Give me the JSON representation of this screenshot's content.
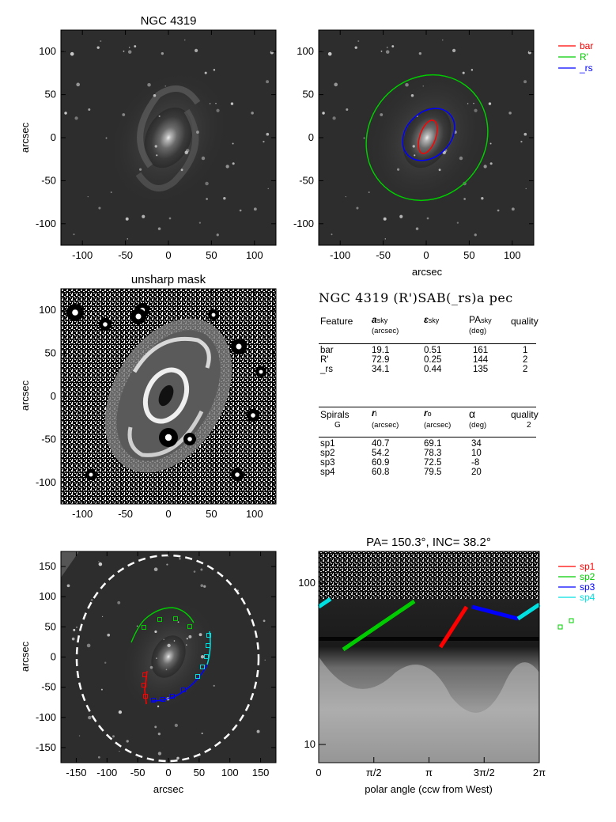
{
  "figure": {
    "galaxy_title": "NGC 4319",
    "unsharp_title": "unsharp mask",
    "deproj_title": "PA= 150.3°, INC=  38.2°",
    "arcsec_label": "arcsec",
    "polar_xlabel": "polar angle (ccw from West)"
  },
  "panel_a": {
    "xticks": [
      "-100",
      "-50",
      "0",
      "50",
      "100"
    ],
    "yticks": [
      "100",
      "50",
      "0",
      "-50",
      "-100"
    ]
  },
  "panel_b": {
    "xticks": [
      "-100",
      "-50",
      "0",
      "50",
      "100"
    ],
    "yticks": [
      "100",
      "50",
      "0",
      "-50",
      "-100"
    ],
    "legend": [
      {
        "label": "bar",
        "color": "#ff0000"
      },
      {
        "label": "R'",
        "color": "#00cc00"
      },
      {
        "label": "_rs",
        "color": "#0000ff"
      }
    ]
  },
  "panel_c": {
    "xticks": [
      "-100",
      "-50",
      "0",
      "50",
      "100"
    ],
    "yticks": [
      "100",
      "50",
      "0",
      "-50",
      "-100"
    ]
  },
  "panel_e": {
    "xticks": [
      "-150",
      "-100",
      "-50",
      "0",
      "50",
      "100",
      "150"
    ],
    "yticks": [
      "150",
      "100",
      "50",
      "0",
      "-50",
      "-100",
      "-150"
    ]
  },
  "panel_f": {
    "xticks": [
      "0",
      "π/2",
      "π",
      "3π/2",
      "2π"
    ],
    "yticks": [
      "100",
      "10"
    ],
    "legend": [
      {
        "label": "sp1",
        "color": "#ff0000"
      },
      {
        "label": "sp2",
        "color": "#00cc00"
      },
      {
        "label": "sp3",
        "color": "#0000ff"
      },
      {
        "label": "sp4",
        "color": "#00e0e0"
      }
    ]
  },
  "table": {
    "title": "NGC 4319  (R')SAB(_rs)a pec",
    "features_header": {
      "col1": "Feature",
      "col2": "a",
      "col2_sub": "sky",
      "col2_unit": "(arcsec)",
      "col3": "ε",
      "col3_sub": "sky",
      "col4": "PA",
      "col4_sub": "sky",
      "col4_unit": "(deg)",
      "col5": "quality"
    },
    "features": [
      {
        "name": "bar",
        "a": "19.1",
        "eps": "0.51",
        "pa": "161",
        "q": "1"
      },
      {
        "name": "R'",
        "a": "72.9",
        "eps": "0.25",
        "pa": "144",
        "q": "2"
      },
      {
        "name": "_rs",
        "a": "34.1",
        "eps": "0.44",
        "pa": "135",
        "q": "2"
      }
    ],
    "spirals_header": {
      "col1": "Spirals",
      "col1_sub": "G",
      "col2": "r",
      "col2_sub": "i",
      "col2_unit": "(arcsec)",
      "col3": "r",
      "col3_sub": "o",
      "col3_unit": "(arcsec)",
      "col4": "α",
      "col4_unit": "(deg)",
      "col5": "quality",
      "col5_val": "2"
    },
    "spirals": [
      {
        "name": "sp1",
        "ri": "40.7",
        "ro": "69.1",
        "alpha": "34"
      },
      {
        "name": "sp2",
        "ri": "54.2",
        "ro": "78.3",
        "alpha": "10"
      },
      {
        "name": "sp3",
        "ri": "60.9",
        "ro": "72.5",
        "alpha": "-8"
      },
      {
        "name": "sp4",
        "ri": "60.8",
        "ro": "79.5",
        "alpha": "20"
      }
    ]
  }
}
